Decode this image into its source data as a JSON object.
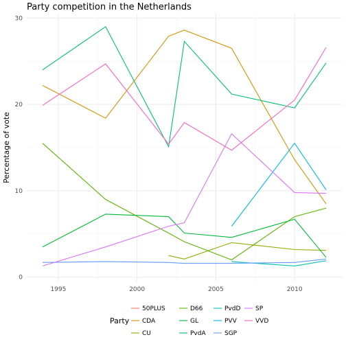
{
  "chart_data": {
    "type": "line",
    "title": "Party competition in the Netherlands",
    "xlabel": "",
    "ylabel": "Percentage of vote",
    "xlim": [
      1993.0,
      2013.0
    ],
    "ylim": [
      -0.5,
      30.5
    ],
    "x_ticks": [
      1995,
      2000,
      2005,
      2010
    ],
    "y_ticks": [
      0,
      10,
      20,
      30
    ],
    "grid": true,
    "legend_title": "Party",
    "legend_position": "bottom",
    "series": [
      {
        "name": "50PLUS",
        "color": "#F8766D",
        "points": [
          [
            2012,
            1.9
          ]
        ]
      },
      {
        "name": "CDA",
        "color": "#D39200",
        "points": [
          [
            1994,
            22.2
          ],
          [
            1998,
            18.4
          ],
          [
            2002,
            27.9
          ],
          [
            2003,
            28.6
          ],
          [
            2006,
            26.5
          ],
          [
            2010,
            13.6
          ],
          [
            2012,
            8.5
          ]
        ]
      },
      {
        "name": "CU",
        "color": "#93AA00",
        "points": [
          [
            2002,
            2.5
          ],
          [
            2003,
            2.1
          ],
          [
            2006,
            4.0
          ],
          [
            2010,
            3.2
          ],
          [
            2012,
            3.1
          ]
        ]
      },
      {
        "name": "D66",
        "color": "#5EB300",
        "points": [
          [
            1994,
            15.5
          ],
          [
            1998,
            9.0
          ],
          [
            2002,
            5.1
          ],
          [
            2003,
            4.1
          ],
          [
            2006,
            2.0
          ],
          [
            2010,
            7.0
          ],
          [
            2012,
            8.0
          ]
        ]
      },
      {
        "name": "GL",
        "color": "#00BA38",
        "points": [
          [
            1994,
            3.5
          ],
          [
            1998,
            7.3
          ],
          [
            2002,
            7.0
          ],
          [
            2003,
            5.1
          ],
          [
            2006,
            4.6
          ],
          [
            2010,
            6.7
          ],
          [
            2012,
            2.3
          ]
        ]
      },
      {
        "name": "PvdA",
        "color": "#00BF74",
        "points": [
          [
            1994,
            24.0
          ],
          [
            1998,
            29.0
          ],
          [
            2002,
            15.1
          ],
          [
            2003,
            27.3
          ],
          [
            2006,
            21.2
          ],
          [
            2010,
            19.6
          ],
          [
            2012,
            24.8
          ]
        ]
      },
      {
        "name": "PvdD",
        "color": "#00C0AF",
        "points": [
          [
            2006,
            1.8
          ],
          [
            2010,
            1.3
          ],
          [
            2012,
            1.9
          ]
        ]
      },
      {
        "name": "PVV",
        "color": "#00B9E3",
        "points": [
          [
            2006,
            5.9
          ],
          [
            2010,
            15.5
          ],
          [
            2012,
            10.1
          ]
        ]
      },
      {
        "name": "SGP",
        "color": "#619CFF",
        "points": [
          [
            1994,
            1.7
          ],
          [
            1998,
            1.8
          ],
          [
            2002,
            1.7
          ],
          [
            2003,
            1.6
          ],
          [
            2006,
            1.6
          ],
          [
            2010,
            1.7
          ],
          [
            2012,
            2.1
          ]
        ]
      },
      {
        "name": "SP",
        "color": "#DB72FB",
        "points": [
          [
            1994,
            1.3
          ],
          [
            1998,
            3.5
          ],
          [
            2002,
            5.9
          ],
          [
            2003,
            6.3
          ],
          [
            2006,
            16.6
          ],
          [
            2010,
            9.8
          ],
          [
            2012,
            9.7
          ]
        ]
      },
      {
        "name": "VVD",
        "color": "#FF61C3",
        "points": [
          [
            1994,
            19.9
          ],
          [
            1998,
            24.7
          ],
          [
            2002,
            15.4
          ],
          [
            2003,
            17.9
          ],
          [
            2006,
            14.7
          ],
          [
            2010,
            20.5
          ],
          [
            2012,
            26.6
          ]
        ]
      }
    ]
  }
}
